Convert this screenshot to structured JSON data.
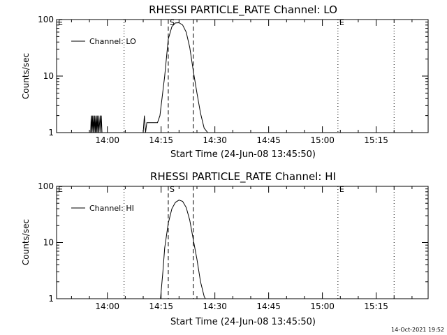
{
  "footer": {
    "timestamp": "14-Oct-2021 19:52"
  },
  "colors": {
    "background": "#ffffff",
    "foreground": "#000000"
  },
  "chart_data": [
    {
      "type": "line",
      "title": "RHESSI PARTICLE_RATE Channel: LO",
      "xlabel": "Start Time (24-Jun-08 13:45:50)",
      "ylabel": "Counts/sec",
      "yscale": "log",
      "ylim": [
        1,
        100
      ],
      "xlim": [
        "13:45:50",
        "15:29:30"
      ],
      "ytick_labels": [
        "1",
        "10",
        "100"
      ],
      "xtick_labels": [
        "14:00",
        "14:15",
        "14:30",
        "14:45",
        "15:00",
        "15:15"
      ],
      "legend": {
        "label": "Channel: LO",
        "placement": "top-left"
      },
      "markers": [
        {
          "label": "E",
          "time": "13:45:50",
          "style": "dotted"
        },
        {
          "label": "",
          "time": "14:04:40",
          "style": "dotted"
        },
        {
          "label": "S",
          "time": "14:17:00",
          "style": "dashed"
        },
        {
          "label": "",
          "time": "14:24:00",
          "style": "dashed"
        },
        {
          "label": "E",
          "time": "15:04:20",
          "style": "dotted"
        },
        {
          "label": "",
          "time": "15:20:00",
          "style": "dotted"
        }
      ],
      "series": [
        {
          "x": [
            "13:45:50",
            "13:55:20",
            "13:55:30",
            "13:55:40",
            "13:55:50",
            "13:56:00",
            "13:56:10",
            "13:56:20",
            "13:56:30",
            "13:56:40",
            "13:56:50",
            "13:57:00",
            "13:57:10",
            "13:57:20",
            "13:57:30",
            "13:57:40",
            "13:57:50",
            "13:58:00",
            "13:58:10",
            "13:58:20",
            "13:58:30",
            "13:58:40",
            "14:10:00",
            "14:10:20",
            "14:10:40",
            "14:11:00",
            "14:11:40",
            "14:14:00",
            "14:14:40",
            "14:15:00",
            "14:16:00",
            "14:17:00",
            "14:18:00",
            "14:19:00",
            "14:20:00",
            "14:21:00",
            "14:22:00",
            "14:23:00",
            "14:24:00",
            "14:25:00",
            "14:26:00",
            "14:27:00",
            "14:28:00",
            "15:29:30"
          ],
          "values": [
            1,
            1,
            2,
            1,
            2,
            1,
            2,
            1,
            2,
            1,
            2,
            1,
            2,
            1,
            2,
            1,
            1.5,
            2,
            1,
            2,
            1,
            1,
            1,
            2,
            1,
            1.5,
            1.5,
            1.5,
            2,
            3,
            10,
            45,
            75,
            87,
            88,
            80,
            60,
            32,
            12,
            5,
            2.2,
            1.2,
            1,
            1
          ]
        }
      ]
    },
    {
      "type": "line",
      "title": "RHESSI PARTICLE_RATE Channel: HI",
      "xlabel": "Start Time (24-Jun-08 13:45:50)",
      "ylabel": "Counts/sec",
      "yscale": "log",
      "ylim": [
        1,
        100
      ],
      "xlim": [
        "13:45:50",
        "15:29:30"
      ],
      "ytick_labels": [
        "1",
        "10",
        "100"
      ],
      "xtick_labels": [
        "14:00",
        "14:15",
        "14:30",
        "14:45",
        "15:00",
        "15:15"
      ],
      "legend": {
        "label": "Channel: HI",
        "placement": "top-left"
      },
      "markers": [
        {
          "label": "E",
          "time": "13:45:50",
          "style": "dotted"
        },
        {
          "label": "",
          "time": "14:04:40",
          "style": "dotted"
        },
        {
          "label": "S",
          "time": "14:17:00",
          "style": "dashed"
        },
        {
          "label": "",
          "time": "14:24:00",
          "style": "dashed"
        },
        {
          "label": "E",
          "time": "15:04:20",
          "style": "dotted"
        },
        {
          "label": "",
          "time": "15:20:00",
          "style": "dotted"
        }
      ],
      "series": [
        {
          "x": [
            "13:45:50",
            "14:14:50",
            "14:15:30",
            "14:16:00",
            "14:17:00",
            "14:18:00",
            "14:19:00",
            "14:20:00",
            "14:21:00",
            "14:22:00",
            "14:23:00",
            "14:24:00",
            "14:25:00",
            "14:26:00",
            "14:27:00",
            "14:27:20",
            "15:29:30"
          ],
          "values": [
            1,
            1,
            3,
            8,
            22,
            40,
            52,
            57,
            54,
            42,
            25,
            11,
            5,
            2,
            1.1,
            1,
            1
          ]
        }
      ]
    }
  ]
}
